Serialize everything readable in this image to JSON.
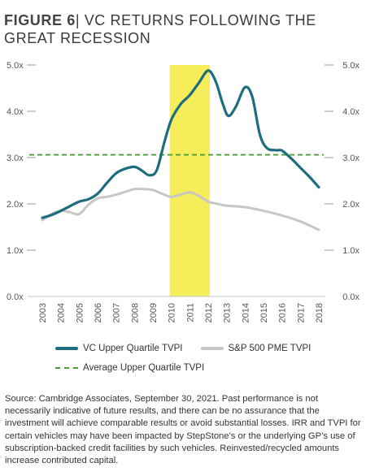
{
  "figure": {
    "label": "FIGURE 6",
    "title": "| VC RETURNS FOLLOWING THE GREAT RECESSION"
  },
  "chart_data": {
    "type": "line",
    "title": "VC RETURNS FOLLOWING THE GREAT RECESSION",
    "x": [
      "2003",
      "2004",
      "2005",
      "2006",
      "2007",
      "2008",
      "2009",
      "2010",
      "2011",
      "2012",
      "2013",
      "2014",
      "2015",
      "2016",
      "2017",
      "2018"
    ],
    "ylim": [
      0,
      5
    ],
    "yticks": [
      "0.0x",
      "1.0x",
      "2.0x",
      "3.0x",
      "4.0x",
      "5.0x"
    ],
    "series": [
      {
        "name": "VC Upper Quartile TVPI",
        "color": "#1d6d7e",
        "points": [
          [
            2003,
            1.7
          ],
          [
            2003.5,
            1.76
          ],
          [
            2004,
            1.85
          ],
          [
            2004.5,
            1.95
          ],
          [
            2005,
            2.05
          ],
          [
            2005.5,
            2.1
          ],
          [
            2006,
            2.22
          ],
          [
            2006.5,
            2.45
          ],
          [
            2007,
            2.66
          ],
          [
            2007.5,
            2.76
          ],
          [
            2008,
            2.8
          ],
          [
            2008.4,
            2.72
          ],
          [
            2008.8,
            2.62
          ],
          [
            2009.2,
            2.72
          ],
          [
            2009.6,
            3.3
          ],
          [
            2010,
            3.82
          ],
          [
            2010.5,
            4.15
          ],
          [
            2011,
            4.35
          ],
          [
            2011.5,
            4.62
          ],
          [
            2012,
            4.88
          ],
          [
            2012.4,
            4.65
          ],
          [
            2012.8,
            4.15
          ],
          [
            2013.1,
            3.9
          ],
          [
            2013.5,
            4.1
          ],
          [
            2014,
            4.52
          ],
          [
            2014.4,
            4.3
          ],
          [
            2014.8,
            3.5
          ],
          [
            2015.2,
            3.2
          ],
          [
            2015.7,
            3.16
          ],
          [
            2016,
            3.15
          ],
          [
            2016.5,
            2.98
          ],
          [
            2017,
            2.78
          ],
          [
            2017.5,
            2.58
          ],
          [
            2018,
            2.36
          ]
        ]
      },
      {
        "name": "S&P 500 PME TVPI",
        "color": "#c7c7c7",
        "points": [
          [
            2003,
            1.65
          ],
          [
            2003.5,
            1.78
          ],
          [
            2004,
            1.85
          ],
          [
            2004.5,
            1.82
          ],
          [
            2005,
            1.78
          ],
          [
            2005.5,
            1.98
          ],
          [
            2006,
            2.12
          ],
          [
            2006.5,
            2.15
          ],
          [
            2007,
            2.2
          ],
          [
            2007.5,
            2.26
          ],
          [
            2008,
            2.32
          ],
          [
            2008.5,
            2.32
          ],
          [
            2009,
            2.3
          ],
          [
            2009.5,
            2.22
          ],
          [
            2010,
            2.15
          ],
          [
            2010.5,
            2.2
          ],
          [
            2011,
            2.25
          ],
          [
            2011.5,
            2.17
          ],
          [
            2012,
            2.05
          ],
          [
            2012.5,
            2.0
          ],
          [
            2013,
            1.96
          ],
          [
            2014,
            1.93
          ],
          [
            2015,
            1.85
          ],
          [
            2016,
            1.75
          ],
          [
            2017,
            1.62
          ],
          [
            2018,
            1.44
          ]
        ]
      }
    ],
    "reference_line": {
      "name": "Average Upper Quartile TVPI",
      "value": 3.06,
      "color": "#4a9d37"
    },
    "highlight": {
      "from": 2010,
      "to": 2012,
      "color": "#f6ed5a"
    }
  },
  "legend": {
    "vc": "VC Upper Quartile TVPI",
    "sp": "S&P 500 PME TVPI",
    "avg": "Average Upper Quartile TVPI"
  },
  "source": "Source: Cambridge Associates, September 30, 2021. Past performance is not necessarily indicative of future results, and there can be no assurance that the investment will achieve comparable results or avoid substantial losses. IRR and TVPI for certain vehicles may have been impacted by StepStone’s or the underlying GP’s use of subscription-backed credit facilities by such vehicles. Reinvested/recycled amounts increase contributed capital."
}
